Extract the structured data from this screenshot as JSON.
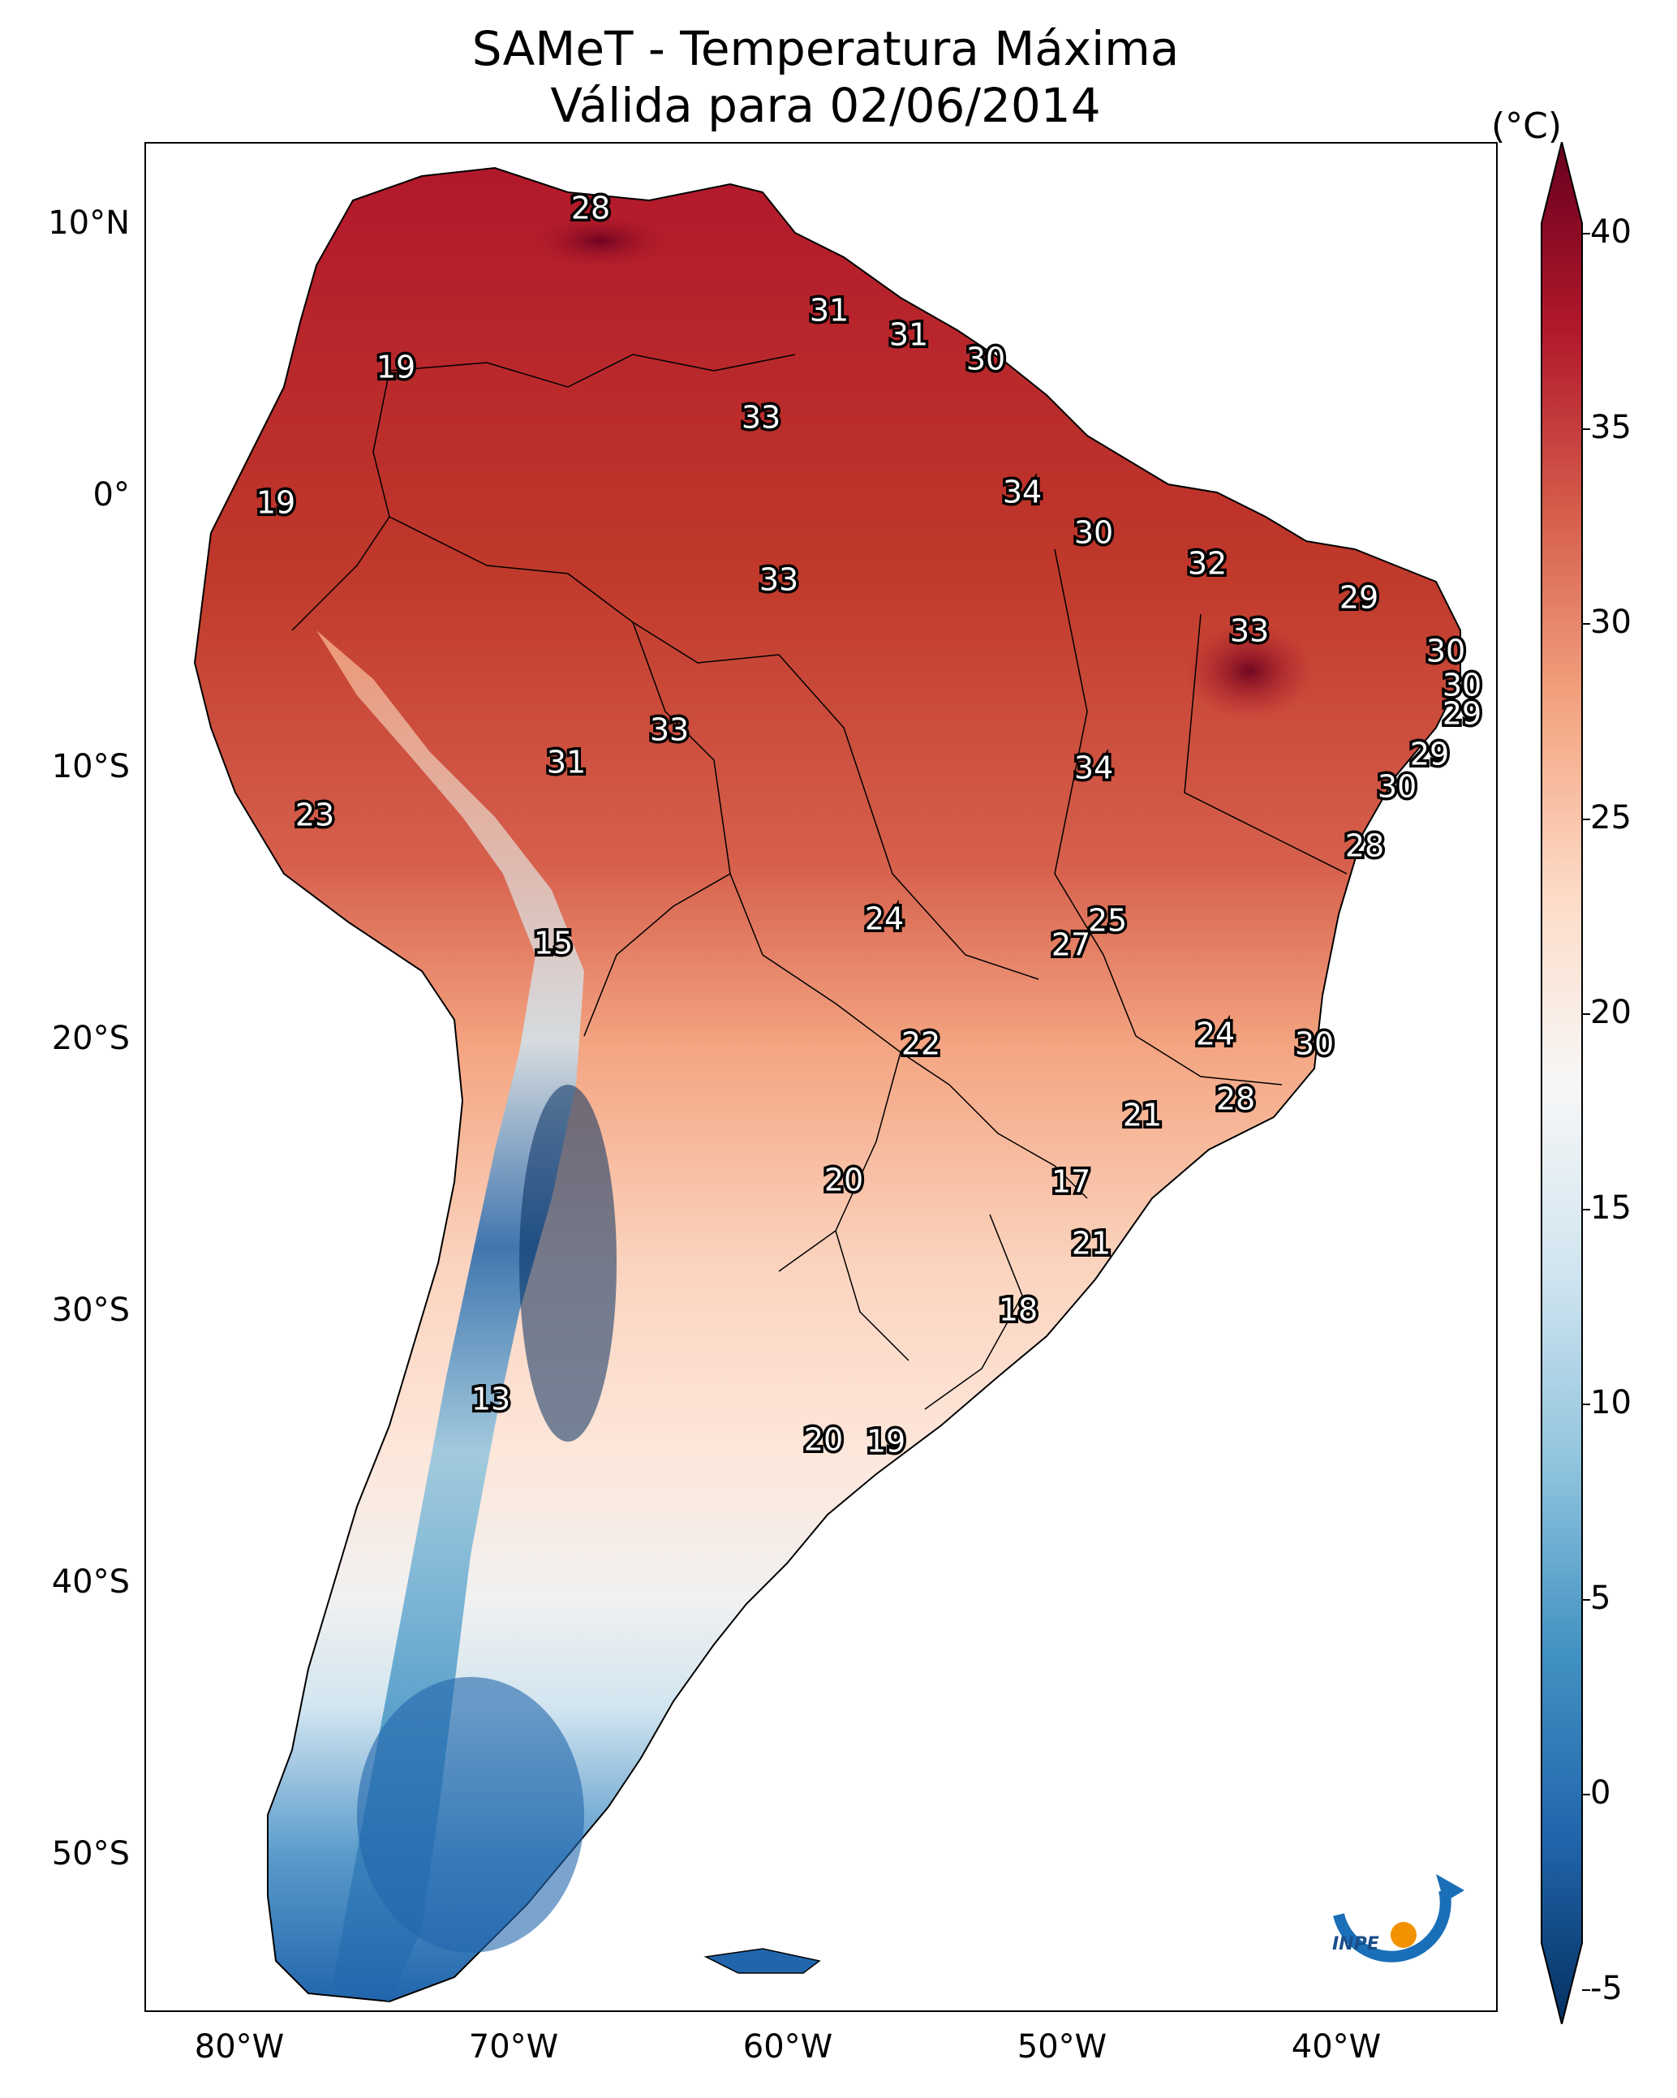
{
  "title": {
    "line1": "SAMeT - Temperatura Máxima",
    "line2": "Válida para 02/06/2014"
  },
  "colorbar": {
    "unit": "(°C)",
    "ticks": [
      "40",
      "35",
      "30",
      "25",
      "20",
      "15",
      "10",
      "5",
      "0",
      "-5"
    ],
    "min": -5,
    "max": 40,
    "colors": [
      "#053061",
      "#2166ac",
      "#4393c3",
      "#92c5de",
      "#d1e5f0",
      "#f7f7f7",
      "#fddbc7",
      "#f4a582",
      "#d6604d",
      "#b2182b",
      "#67001f"
    ]
  },
  "axes": {
    "lat_labels": [
      "10°N",
      "0°",
      "10°S",
      "20°S",
      "30°S",
      "40°S",
      "50°S"
    ],
    "lon_labels": [
      "80°W",
      "70°W",
      "60°W",
      "50°W",
      "40°W"
    ]
  },
  "temperature_labels": [
    "28",
    "31",
    "31",
    "30",
    "19",
    "33",
    "19",
    "34",
    "30",
    "33",
    "32",
    "29",
    "33",
    "30",
    "30",
    "29",
    "33",
    "31",
    "29",
    "34",
    "23",
    "30",
    "28",
    "24",
    "25",
    "15",
    "27",
    "22",
    "24",
    "30",
    "21",
    "28",
    "20",
    "17",
    "21",
    "18",
    "13",
    "20",
    "19"
  ],
  "logo": {
    "text": "INPE"
  }
}
